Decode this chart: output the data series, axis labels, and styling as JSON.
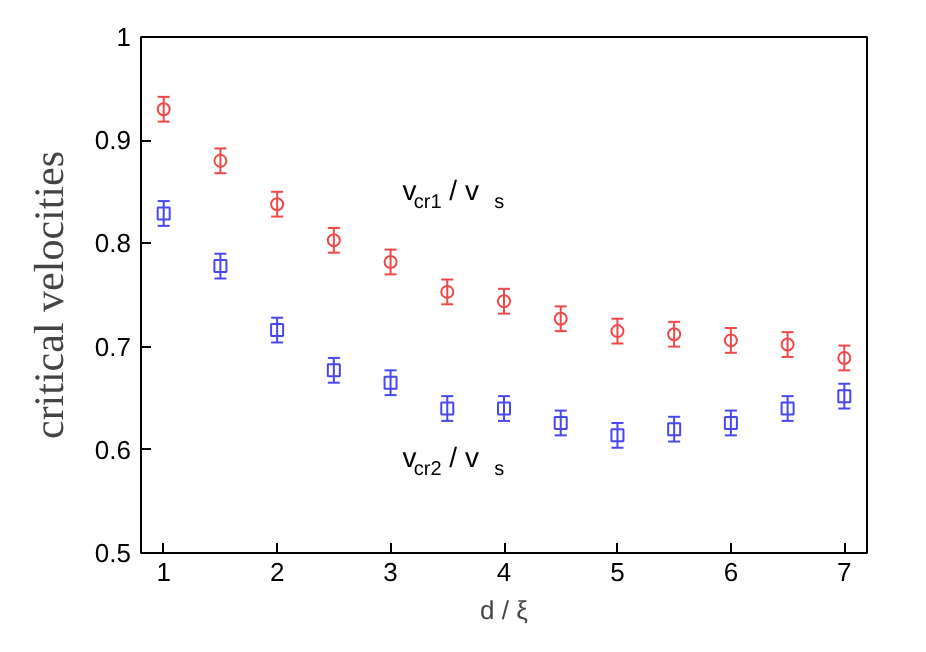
{
  "chart_data": {
    "type": "scatter",
    "xlabel": "d / ξ",
    "ylabel": "critical velocities",
    "x": [
      1,
      1.5,
      2,
      2.5,
      3,
      3.5,
      4,
      4.5,
      5,
      5.5,
      6,
      6.5,
      7
    ],
    "series": [
      {
        "name": "v$_{cr1}$ / v$_{s}$",
        "color": "#f04848",
        "marker": "circle",
        "values": [
          0.93,
          0.88,
          0.838,
          0.803,
          0.782,
          0.753,
          0.744,
          0.727,
          0.715,
          0.712,
          0.706,
          0.702,
          0.689
        ],
        "errors": [
          0.012,
          0.012,
          0.012,
          0.012,
          0.012,
          0.012,
          0.012,
          0.012,
          0.012,
          0.012,
          0.012,
          0.012,
          0.012
        ]
      },
      {
        "name": "v$_{cr2}$ / v$_{s}$",
        "color": "#4848f0",
        "marker": "square",
        "values": [
          0.829,
          0.778,
          0.716,
          0.677,
          0.665,
          0.64,
          0.64,
          0.626,
          0.614,
          0.62,
          0.626,
          0.64,
          0.652
        ],
        "errors": [
          0.012,
          0.012,
          0.012,
          0.012,
          0.012,
          0.012,
          0.012,
          0.012,
          0.012,
          0.012,
          0.012,
          0.012,
          0.012
        ]
      }
    ],
    "xlim": [
      0.8,
      7.2
    ],
    "ylim": [
      0.5,
      1
    ],
    "xticks": [
      1,
      2,
      3,
      4,
      5,
      6,
      7
    ],
    "yticks": [
      0.5,
      0.6,
      0.7,
      0.8,
      0.9,
      1
    ],
    "grid": false
  }
}
